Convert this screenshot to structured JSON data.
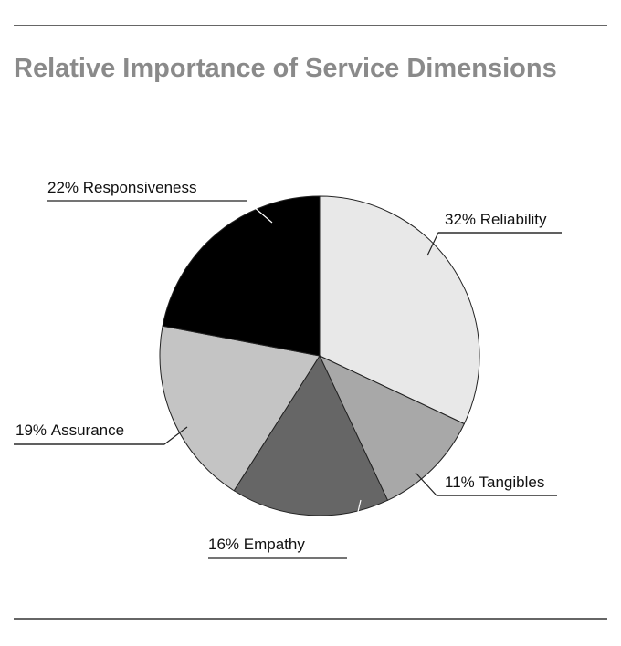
{
  "chart_data": {
    "type": "pie",
    "title": "Relative Importance of Service Dimensions",
    "categories": [
      "Reliability",
      "Tangibles",
      "Empathy",
      "Assurance",
      "Responsiveness"
    ],
    "values": [
      32,
      11,
      16,
      19,
      22
    ],
    "value_labels": [
      "32%",
      "11%",
      "16%",
      "19%",
      "22%"
    ],
    "colors": [
      "#e8e8e8",
      "#a8a8a8",
      "#666666",
      "#c4c4c4",
      "#000000"
    ]
  }
}
